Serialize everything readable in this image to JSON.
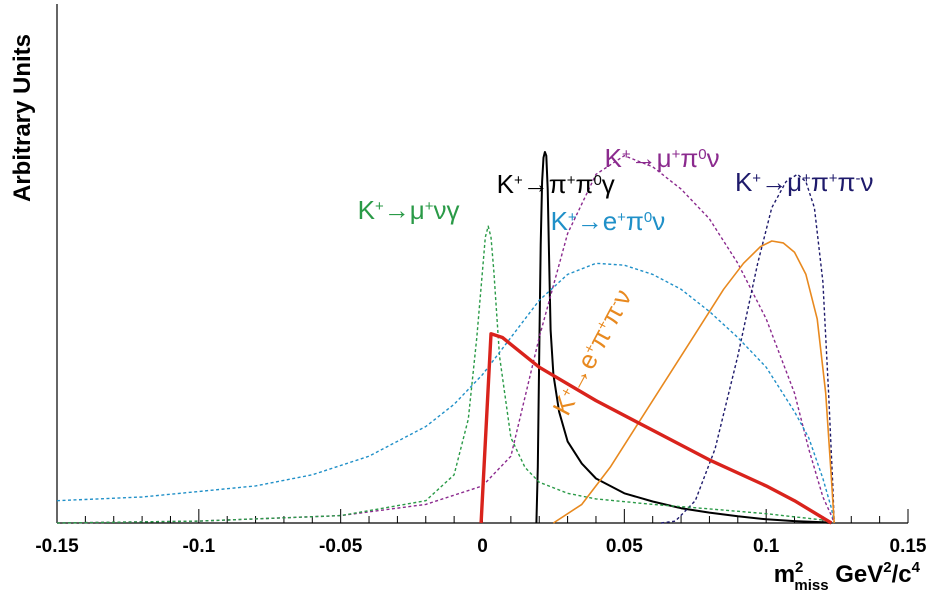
{
  "chart_data": {
    "type": "line",
    "xlabel": "m²miss GeV²/c⁴",
    "xlabel_parts": {
      "base": "m",
      "sup": "2",
      "sub": "miss",
      "units": "GeV",
      "units_sup": "2",
      "slash": "/c",
      "c_sup": "4"
    },
    "ylabel": "Arbitrary Units",
    "xlim": [
      -0.15,
      0.15
    ],
    "ylim": [
      0,
      1.0
    ],
    "grid": false,
    "x_tick_labels": [
      "-0.15",
      "-0.1",
      "-0.05",
      "0",
      "0.05",
      "0.1",
      "0.15"
    ],
    "x_ticks": [
      -0.15,
      -0.1,
      -0.05,
      0,
      0.05,
      0.1,
      0.15
    ],
    "series": [
      {
        "name": "K⁺→π⁺π⁰γ",
        "label_parts": [
          [
            "K",
            ""
          ],
          [
            "+",
            "sup"
          ],
          [
            "→",
            ""
          ],
          [
            "π",
            ""
          ],
          [
            "+",
            "sup"
          ],
          [
            "π",
            ""
          ],
          [
            "0",
            "sup"
          ],
          [
            "γ",
            ""
          ]
        ],
        "color": "#000000",
        "style": "solid",
        "width": 2,
        "label_pos": [
          0.005,
          0.89
        ],
        "x": [
          0.019,
          0.0195,
          0.02,
          0.0205,
          0.021,
          0.0215,
          0.022,
          0.0225,
          0.023,
          0.0235,
          0.024,
          0.025,
          0.027,
          0.03,
          0.035,
          0.04,
          0.05,
          0.06,
          0.07,
          0.08,
          0.09,
          0.1,
          0.11,
          0.12,
          0.123
        ],
        "y": [
          0.0,
          0.15,
          0.45,
          0.75,
          0.92,
          0.985,
          1.0,
          0.99,
          0.9,
          0.7,
          0.52,
          0.4,
          0.3,
          0.22,
          0.16,
          0.12,
          0.08,
          0.058,
          0.04,
          0.028,
          0.018,
          0.01,
          0.005,
          0.002,
          0.0
        ]
      },
      {
        "name": "K⁺→μ⁺π⁰ν",
        "label_parts": [
          [
            "K",
            ""
          ],
          [
            "+",
            "sup"
          ],
          [
            "→",
            ""
          ],
          [
            "μ",
            ""
          ],
          [
            "+",
            "sup"
          ],
          [
            "π",
            ""
          ],
          [
            "0",
            "sup"
          ],
          [
            "ν",
            ""
          ]
        ],
        "color": "#8b2a8e",
        "style": "dashed",
        "width": 1.4,
        "label_pos": [
          0.043,
          0.96
        ],
        "x": [
          -0.15,
          -0.1,
          -0.05,
          -0.02,
          0.0,
          0.01,
          0.02,
          0.03,
          0.04,
          0.05,
          0.06,
          0.07,
          0.08,
          0.09,
          0.1,
          0.11,
          0.115,
          0.12,
          0.123,
          0.124
        ],
        "y": [
          0.0,
          0.005,
          0.02,
          0.05,
          0.1,
          0.18,
          0.5,
          0.78,
          0.94,
          0.99,
          0.96,
          0.9,
          0.82,
          0.7,
          0.55,
          0.35,
          0.2,
          0.07,
          0.02,
          0.0
        ]
      },
      {
        "name": "K⁺→μ⁺π⁺π⁻ν",
        "label_parts": [
          [
            "K",
            ""
          ],
          [
            "+",
            "sup"
          ],
          [
            "→",
            ""
          ],
          [
            "μ",
            ""
          ],
          [
            "+",
            "sup"
          ],
          [
            "π",
            ""
          ],
          [
            "+",
            "sup"
          ],
          [
            "π",
            ""
          ],
          [
            "-",
            "sup"
          ],
          [
            "ν",
            ""
          ]
        ],
        "color": "#1e1a6b",
        "style": "dashed",
        "width": 1.4,
        "label_pos": [
          0.089,
          0.895
        ],
        "x": [
          0.063,
          0.068,
          0.075,
          0.082,
          0.09,
          0.097,
          0.102,
          0.107,
          0.111,
          0.114,
          0.117,
          0.12,
          0.122,
          0.1235,
          0.124
        ],
        "y": [
          0.0,
          0.005,
          0.06,
          0.2,
          0.45,
          0.7,
          0.85,
          0.92,
          0.94,
          0.92,
          0.85,
          0.65,
          0.35,
          0.1,
          0.0
        ]
      },
      {
        "name": "K⁺→μ⁺νγ",
        "label_parts": [
          [
            "K",
            ""
          ],
          [
            "+",
            "sup"
          ],
          [
            "→",
            ""
          ],
          [
            "μ",
            ""
          ],
          [
            "+",
            "sup"
          ],
          [
            "ν",
            ""
          ],
          [
            "γ",
            ""
          ]
        ],
        "color": "#2a9a47",
        "style": "dashed",
        "width": 1.4,
        "label_pos": [
          -0.044,
          0.82
        ],
        "x": [
          -0.15,
          -0.1,
          -0.05,
          -0.02,
          -0.01,
          -0.005,
          -0.002,
          0.0,
          0.001,
          0.002,
          0.003,
          0.004,
          0.006,
          0.01,
          0.015,
          0.02,
          0.03,
          0.04,
          0.06,
          0.08,
          0.1,
          0.12,
          0.123
        ],
        "y": [
          0.0,
          0.005,
          0.02,
          0.06,
          0.13,
          0.28,
          0.5,
          0.68,
          0.77,
          0.8,
          0.77,
          0.68,
          0.45,
          0.23,
          0.15,
          0.11,
          0.08,
          0.065,
          0.05,
          0.038,
          0.025,
          0.008,
          0.0
        ]
      },
      {
        "name": "K⁺→e⁺π⁰ν",
        "label_parts": [
          [
            "K",
            ""
          ],
          [
            "+",
            "sup"
          ],
          [
            "→",
            ""
          ],
          [
            "e",
            ""
          ],
          [
            "+",
            "sup"
          ],
          [
            "π",
            ""
          ],
          [
            "0",
            "sup"
          ],
          [
            "ν",
            ""
          ]
        ],
        "color": "#2090c8",
        "style": "dashed",
        "width": 1.4,
        "label_pos": [
          0.024,
          0.79
        ],
        "x": [
          -0.15,
          -0.12,
          -0.1,
          -0.08,
          -0.06,
          -0.04,
          -0.02,
          -0.01,
          0.0,
          0.01,
          0.02,
          0.03,
          0.04,
          0.05,
          0.06,
          0.07,
          0.08,
          0.09,
          0.1,
          0.11,
          0.115,
          0.12,
          0.123,
          0.124
        ],
        "y": [
          0.06,
          0.07,
          0.085,
          0.1,
          0.13,
          0.18,
          0.26,
          0.32,
          0.4,
          0.5,
          0.6,
          0.67,
          0.7,
          0.695,
          0.67,
          0.63,
          0.57,
          0.5,
          0.42,
          0.3,
          0.23,
          0.12,
          0.04,
          0.0
        ]
      },
      {
        "name": "K⁺→e⁺π⁺π⁻ν",
        "label_parts": [
          [
            "K",
            ""
          ],
          [
            "+",
            "sup"
          ],
          [
            "→",
            ""
          ],
          [
            "e",
            ""
          ],
          [
            "+",
            "sup"
          ],
          [
            "π",
            ""
          ],
          [
            "+",
            "sup"
          ],
          [
            "π",
            ""
          ],
          [
            "-",
            "sup"
          ],
          [
            "ν",
            ""
          ]
        ],
        "color": "#e8891f",
        "style": "solid",
        "width": 1.6,
        "label_pos": [
          0.03,
          0.285
        ],
        "label_rotate": -62,
        "x": [
          0.025,
          0.035,
          0.045,
          0.055,
          0.065,
          0.075,
          0.085,
          0.092,
          0.098,
          0.102,
          0.106,
          0.11,
          0.114,
          0.118,
          0.121,
          0.123,
          0.124
        ],
        "y": [
          0.0,
          0.05,
          0.15,
          0.27,
          0.39,
          0.51,
          0.63,
          0.7,
          0.745,
          0.76,
          0.755,
          0.73,
          0.67,
          0.55,
          0.35,
          0.12,
          0.0
        ]
      },
      {
        "name": "red triangular distribution",
        "color": "#d9231c",
        "style": "solid",
        "width": 3.4,
        "x": [
          -0.0005,
          0.003,
          0.007,
          0.02,
          0.04,
          0.06,
          0.08,
          0.1,
          0.11,
          0.123
        ],
        "y": [
          0.0,
          0.51,
          0.5,
          0.42,
          0.33,
          0.25,
          0.17,
          0.1,
          0.06,
          0.0
        ]
      }
    ]
  }
}
